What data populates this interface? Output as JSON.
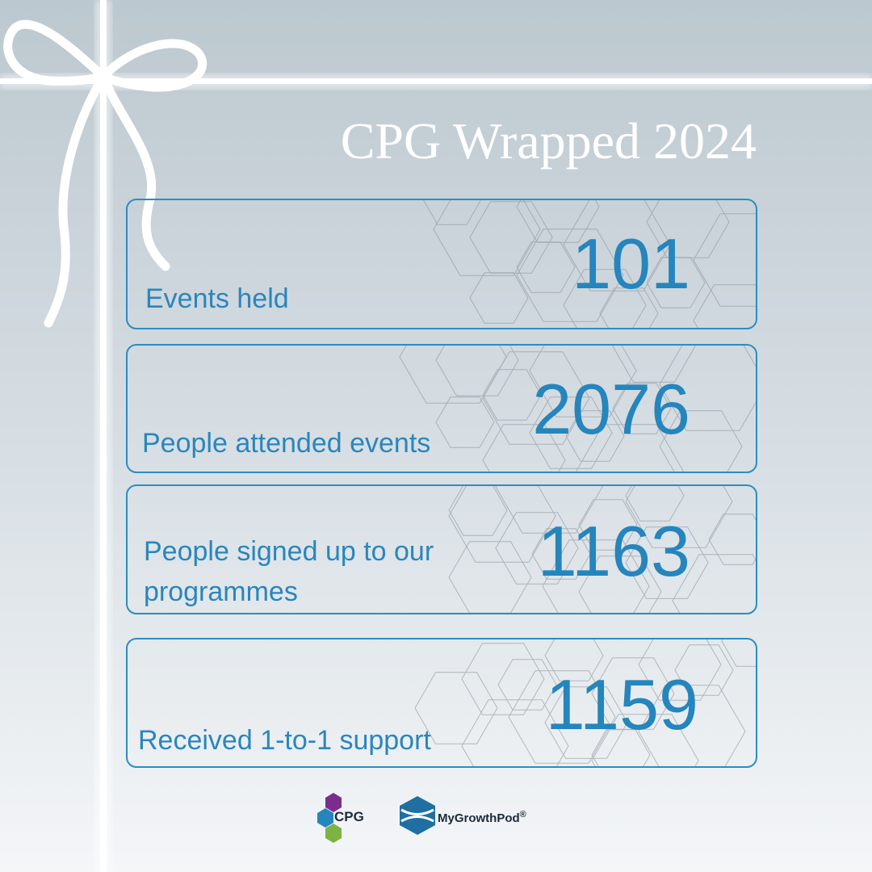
{
  "header": {
    "title": "CPG Wrapped 2024"
  },
  "stats": [
    {
      "label": "Events held",
      "number": 101
    },
    {
      "label": "People attended events",
      "number": 2076
    },
    {
      "label": "People signed up to our programmes",
      "number": 1163
    },
    {
      "label": "Received 1-to-1 support",
      "number": 1159
    }
  ],
  "footer": {
    "logos": [
      {
        "name": "CPG"
      },
      {
        "name": "MyGrowthPod",
        "mark": "®"
      }
    ]
  }
}
